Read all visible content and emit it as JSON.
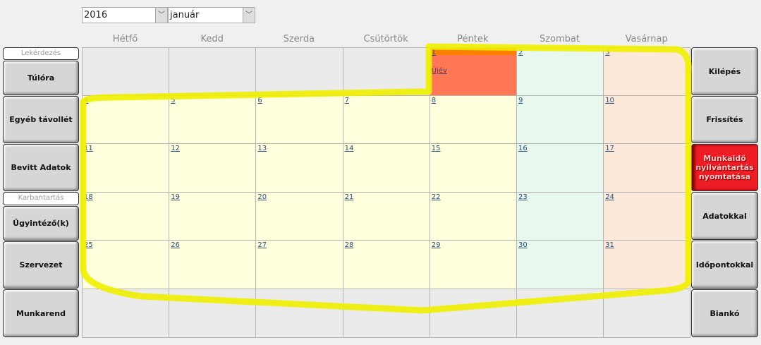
{
  "year_select": {
    "value": "2016"
  },
  "month_select": {
    "value": "január"
  },
  "weekdays": [
    "Hétfő",
    "Kedd",
    "Szerda",
    "Csütörtök",
    "Péntek",
    "Szombat",
    "Vasárnap"
  ],
  "left_panel": {
    "label_query": "Lekérdezés",
    "overtime": "Túlóra",
    "other_absence": "Egyéb távollét",
    "entered_data": "Bevitt Adatok",
    "label_maintenance": "Karbantartás",
    "clerks": "Ügyintéző(k)",
    "organization": "Szervezet",
    "work_schedule": "Munkarend"
  },
  "right_panel": {
    "exit": "Kilépés",
    "refresh": "Frissítés",
    "print": "Munkaidő nyilvántartás nyomtatása",
    "with_data": "Adatokkal",
    "with_times": "Időpontokkal",
    "blank": "Biankó"
  },
  "calendar": {
    "first_weekday_index": 4,
    "days_in_month": 31,
    "holidays": {
      "1": "Újév"
    }
  },
  "colors": {
    "weekday": "#ffffdd",
    "saturday": "#e8f8ee",
    "sunday": "#fde9d9",
    "holiday": "#ff7755",
    "holiday_bar": "#ff7f00",
    "empty": "#ebebeb",
    "print_button": "#ee1c25",
    "highlight": "#f0f000"
  }
}
